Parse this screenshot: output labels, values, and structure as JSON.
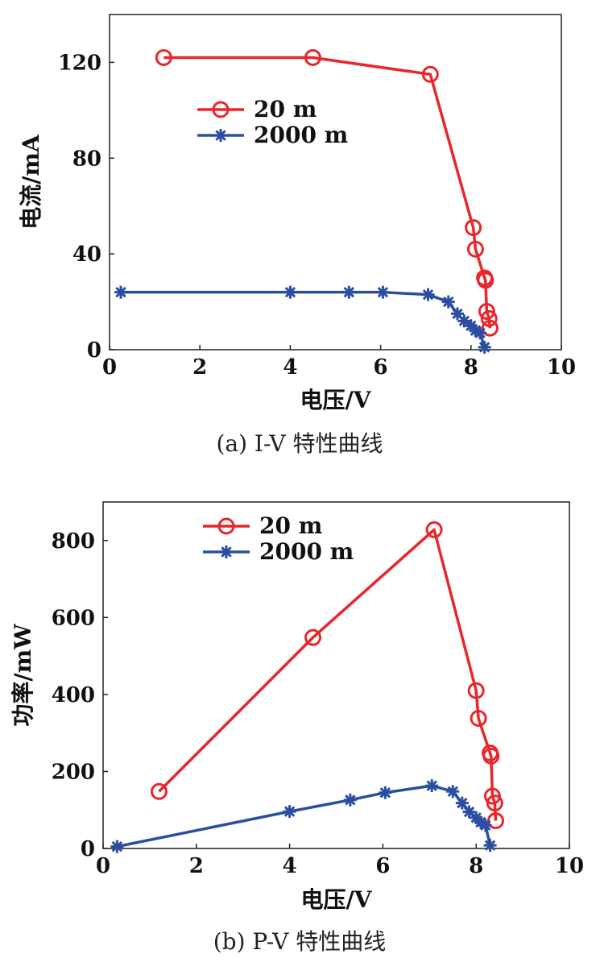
{
  "chart_data": [
    {
      "type": "line",
      "caption": "(a) I-V 特性曲线",
      "xlabel": "电压/V",
      "ylabel": "电流/mA",
      "xlim": [
        0,
        10
      ],
      "ylim": [
        0,
        140
      ],
      "xticks": [
        0,
        2,
        4,
        6,
        8,
        10
      ],
      "yticks": [
        0,
        40,
        80,
        120
      ],
      "legend_position": "upper-center",
      "series": [
        {
          "name": "20 m",
          "color": "#e8262b",
          "marker": "circle",
          "x": [
            1.2,
            4.5,
            7.1,
            8.05,
            8.1,
            8.3,
            8.32,
            8.35,
            8.4,
            8.42
          ],
          "y": [
            122,
            122,
            115,
            51,
            42,
            30,
            29,
            16,
            13,
            9
          ]
        },
        {
          "name": "2000 m",
          "color": "#2b4ea0",
          "marker": "asterisk",
          "x": [
            0.25,
            4.0,
            5.3,
            6.05,
            7.05,
            7.5,
            7.7,
            7.85,
            8.0,
            8.1,
            8.2,
            8.3
          ],
          "y": [
            24,
            24,
            24,
            24,
            23,
            20,
            15,
            12,
            10,
            8,
            7,
            1
          ]
        }
      ]
    },
    {
      "type": "line",
      "caption": "(b) P-V 特性曲线",
      "xlabel": "电压/V",
      "ylabel": "功率/mW",
      "xlim": [
        0,
        10
      ],
      "ylim": [
        0,
        900
      ],
      "xticks": [
        0,
        2,
        4,
        6,
        8,
        10
      ],
      "yticks": [
        0,
        200,
        400,
        600,
        800
      ],
      "legend_position": "top-center",
      "series": [
        {
          "name": "20 m",
          "color": "#e8262b",
          "marker": "circle",
          "x": [
            1.2,
            4.5,
            7.1,
            8.0,
            8.05,
            8.3,
            8.32,
            8.35,
            8.4,
            8.42
          ],
          "y": [
            148,
            548,
            828,
            410,
            338,
            248,
            240,
            136,
            118,
            72
          ]
        },
        {
          "name": "2000 m",
          "color": "#2b4ea0",
          "marker": "asterisk",
          "x": [
            0.3,
            4.0,
            5.3,
            6.05,
            7.05,
            7.5,
            7.7,
            7.85,
            8.0,
            8.1,
            8.2,
            8.3
          ],
          "y": [
            5,
            96,
            126,
            145,
            163,
            148,
            118,
            95,
            80,
            68,
            60,
            8
          ]
        }
      ]
    }
  ]
}
